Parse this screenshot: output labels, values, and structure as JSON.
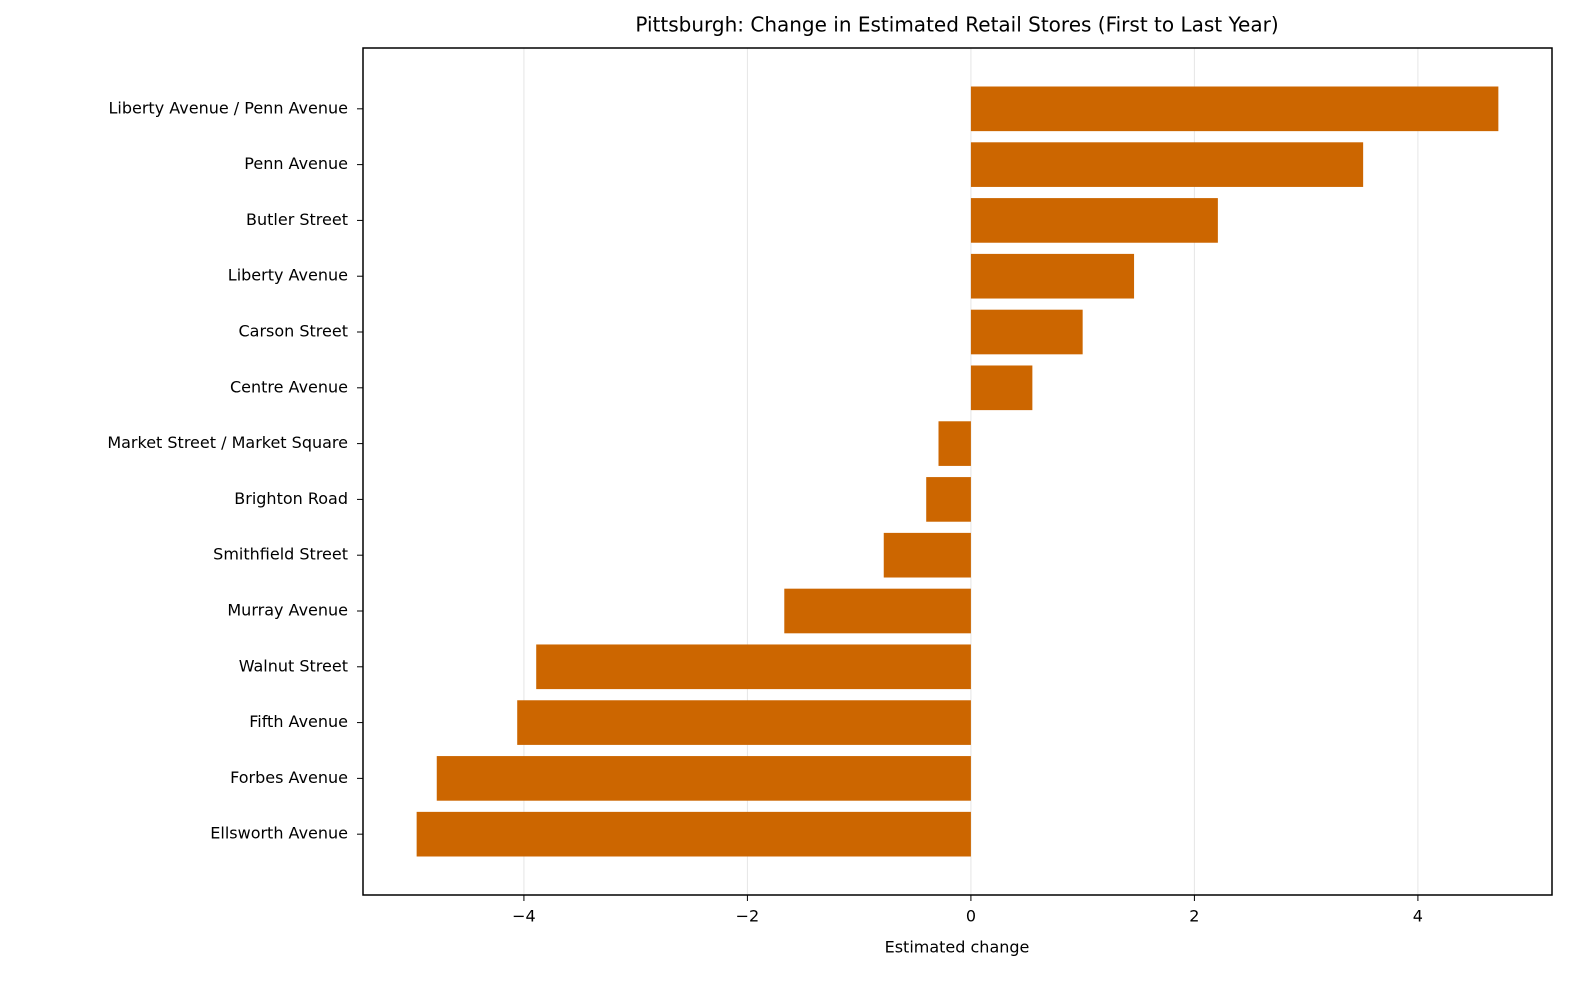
{
  "chart_data": {
    "type": "barh",
    "title": "Pittsburgh: Change in Estimated Retail Stores (First to Last Year)",
    "x_label": "Estimated change",
    "categories": [
      "Liberty Avenue / Penn Avenue",
      "Penn Avenue",
      "Butler Street",
      "Liberty Avenue",
      "Carson Street",
      "Centre Avenue",
      "Market Street / Market Square",
      "Brighton Road",
      "Smithfield Street",
      "Murray Avenue",
      "Walnut Street",
      "Fifth Avenue",
      "Forbes Avenue",
      "Ellsworth Avenue"
    ],
    "values": [
      4.72,
      3.51,
      2.21,
      1.46,
      1.0,
      0.55,
      -0.29,
      -0.4,
      -0.78,
      -1.67,
      -3.89,
      -4.06,
      -4.78,
      -4.96
    ],
    "color": "#cc6600",
    "xlim": [
      -5.44,
      5.2
    ],
    "xticks": [
      {
        "value": -4,
        "label": "−4"
      },
      {
        "value": -2,
        "label": "−2"
      },
      0,
      2,
      4
    ],
    "grid": true
  }
}
